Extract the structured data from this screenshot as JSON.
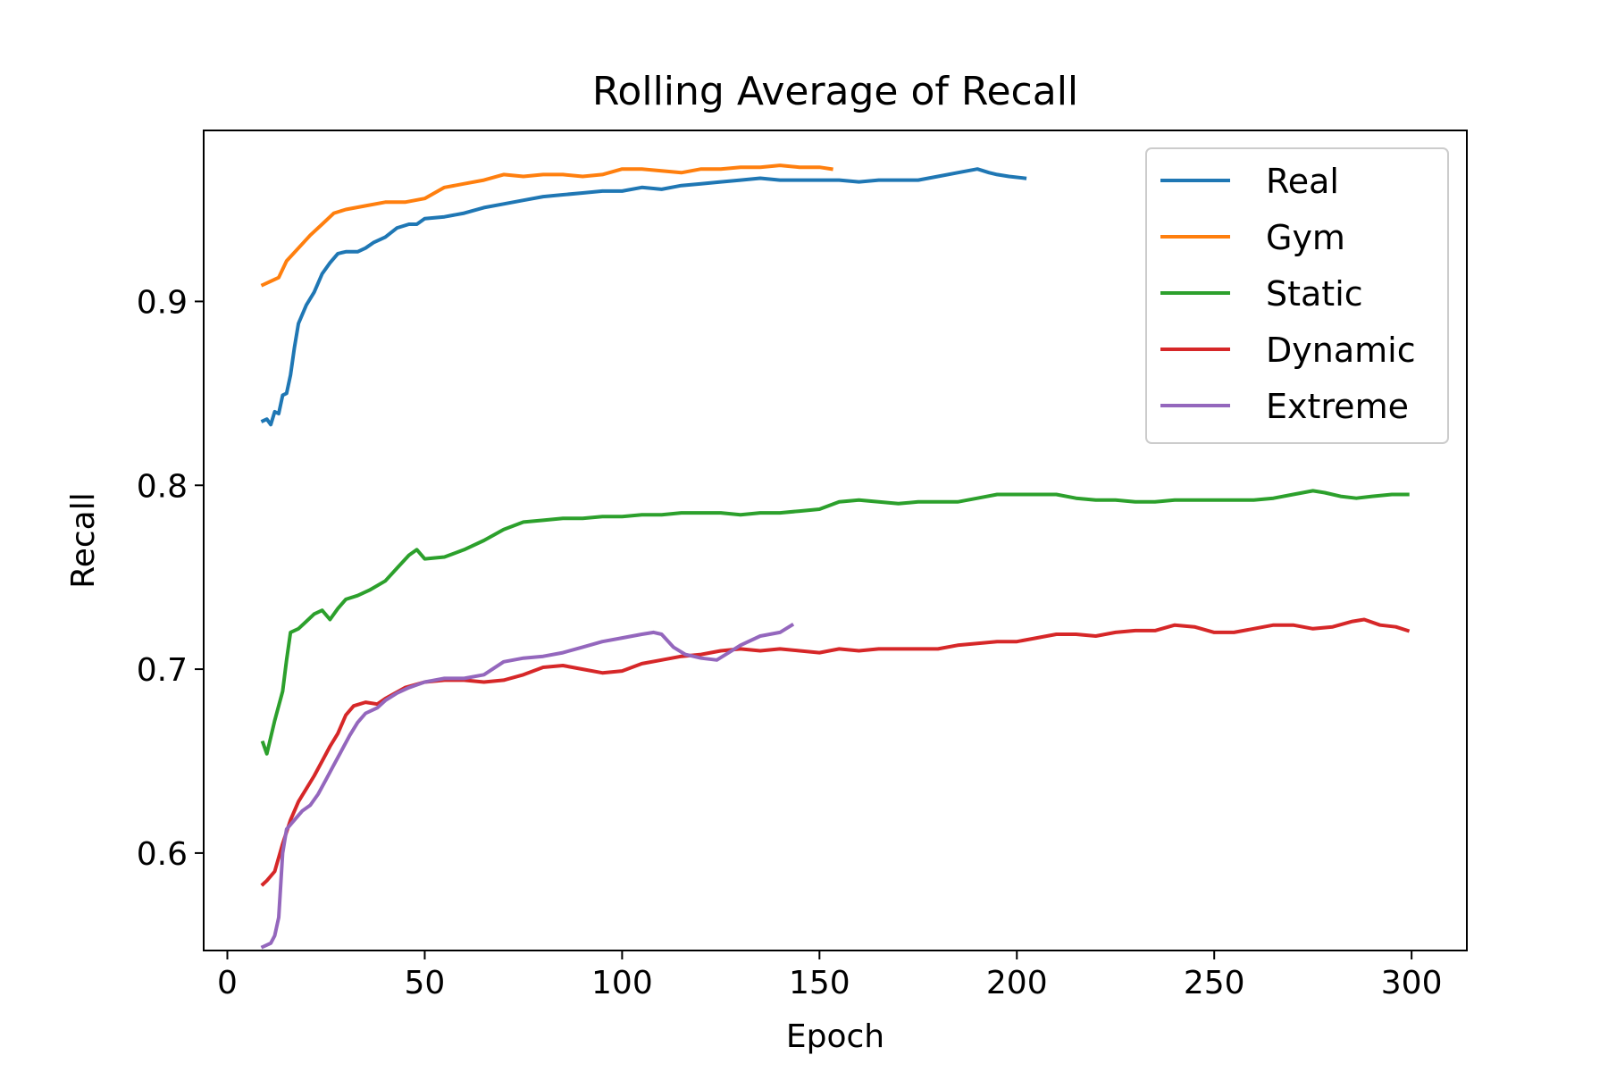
{
  "chart_data": {
    "type": "line",
    "title": "Rolling Average of Recall",
    "xlabel": "Epoch",
    "ylabel": "Recall",
    "xlim": [
      -6,
      314
    ],
    "ylim": [
      0.547,
      0.993
    ],
    "xticks": [
      0,
      50,
      100,
      150,
      200,
      250,
      300
    ],
    "xtick_labels": [
      "0",
      "50",
      "100",
      "150",
      "200",
      "250",
      "300"
    ],
    "yticks": [
      0.6,
      0.7,
      0.8,
      0.9
    ],
    "ytick_labels": [
      "0.6",
      "0.7",
      "0.8",
      "0.9"
    ],
    "grid": false,
    "legend_position": "top-right",
    "series": [
      {
        "name": "Real",
        "color": "#1f77b4",
        "points": [
          [
            9,
            0.835
          ],
          [
            10,
            0.836
          ],
          [
            11,
            0.833
          ],
          [
            12,
            0.84
          ],
          [
            13,
            0.839
          ],
          [
            14,
            0.849
          ],
          [
            15,
            0.85
          ],
          [
            16,
            0.86
          ],
          [
            17,
            0.875
          ],
          [
            18,
            0.888
          ],
          [
            20,
            0.898
          ],
          [
            22,
            0.905
          ],
          [
            24,
            0.915
          ],
          [
            26,
            0.921
          ],
          [
            28,
            0.926
          ],
          [
            30,
            0.927
          ],
          [
            33,
            0.927
          ],
          [
            35,
            0.929
          ],
          [
            37,
            0.932
          ],
          [
            40,
            0.935
          ],
          [
            43,
            0.94
          ],
          [
            46,
            0.942
          ],
          [
            48,
            0.942
          ],
          [
            50,
            0.945
          ],
          [
            55,
            0.946
          ],
          [
            60,
            0.948
          ],
          [
            65,
            0.951
          ],
          [
            70,
            0.953
          ],
          [
            75,
            0.955
          ],
          [
            80,
            0.957
          ],
          [
            85,
            0.958
          ],
          [
            90,
            0.959
          ],
          [
            95,
            0.96
          ],
          [
            100,
            0.96
          ],
          [
            105,
            0.962
          ],
          [
            110,
            0.961
          ],
          [
            115,
            0.963
          ],
          [
            120,
            0.964
          ],
          [
            125,
            0.965
          ],
          [
            130,
            0.966
          ],
          [
            135,
            0.967
          ],
          [
            140,
            0.966
          ],
          [
            145,
            0.966
          ],
          [
            150,
            0.966
          ],
          [
            155,
            0.966
          ],
          [
            160,
            0.965
          ],
          [
            165,
            0.966
          ],
          [
            170,
            0.966
          ],
          [
            175,
            0.966
          ],
          [
            180,
            0.968
          ],
          [
            185,
            0.97
          ],
          [
            190,
            0.972
          ],
          [
            193,
            0.97
          ],
          [
            195,
            0.969
          ],
          [
            198,
            0.968
          ],
          [
            202,
            0.967
          ]
        ]
      },
      {
        "name": "Gym",
        "color": "#ff7f0e",
        "points": [
          [
            9,
            0.909
          ],
          [
            11,
            0.911
          ],
          [
            13,
            0.913
          ],
          [
            15,
            0.922
          ],
          [
            18,
            0.929
          ],
          [
            21,
            0.936
          ],
          [
            24,
            0.942
          ],
          [
            27,
            0.948
          ],
          [
            30,
            0.95
          ],
          [
            35,
            0.952
          ],
          [
            40,
            0.954
          ],
          [
            45,
            0.954
          ],
          [
            50,
            0.956
          ],
          [
            55,
            0.962
          ],
          [
            60,
            0.964
          ],
          [
            65,
            0.966
          ],
          [
            70,
            0.969
          ],
          [
            75,
            0.968
          ],
          [
            80,
            0.969
          ],
          [
            85,
            0.969
          ],
          [
            90,
            0.968
          ],
          [
            95,
            0.969
          ],
          [
            100,
            0.972
          ],
          [
            105,
            0.972
          ],
          [
            110,
            0.971
          ],
          [
            115,
            0.97
          ],
          [
            120,
            0.972
          ],
          [
            125,
            0.972
          ],
          [
            130,
            0.973
          ],
          [
            135,
            0.973
          ],
          [
            140,
            0.974
          ],
          [
            145,
            0.973
          ],
          [
            150,
            0.973
          ],
          [
            153,
            0.972
          ]
        ]
      },
      {
        "name": "Static",
        "color": "#2ca02c",
        "points": [
          [
            9,
            0.66
          ],
          [
            10,
            0.654
          ],
          [
            12,
            0.672
          ],
          [
            14,
            0.688
          ],
          [
            15,
            0.705
          ],
          [
            16,
            0.72
          ],
          [
            18,
            0.722
          ],
          [
            20,
            0.726
          ],
          [
            22,
            0.73
          ],
          [
            24,
            0.732
          ],
          [
            26,
            0.727
          ],
          [
            28,
            0.733
          ],
          [
            30,
            0.738
          ],
          [
            33,
            0.74
          ],
          [
            36,
            0.743
          ],
          [
            40,
            0.748
          ],
          [
            43,
            0.755
          ],
          [
            46,
            0.762
          ],
          [
            48,
            0.765
          ],
          [
            50,
            0.76
          ],
          [
            55,
            0.761
          ],
          [
            60,
            0.765
          ],
          [
            65,
            0.77
          ],
          [
            70,
            0.776
          ],
          [
            75,
            0.78
          ],
          [
            80,
            0.781
          ],
          [
            85,
            0.782
          ],
          [
            90,
            0.782
          ],
          [
            95,
            0.783
          ],
          [
            100,
            0.783
          ],
          [
            105,
            0.784
          ],
          [
            110,
            0.784
          ],
          [
            115,
            0.785
          ],
          [
            120,
            0.785
          ],
          [
            125,
            0.785
          ],
          [
            130,
            0.784
          ],
          [
            135,
            0.785
          ],
          [
            140,
            0.785
          ],
          [
            145,
            0.786
          ],
          [
            150,
            0.787
          ],
          [
            155,
            0.791
          ],
          [
            160,
            0.792
          ],
          [
            165,
            0.791
          ],
          [
            170,
            0.79
          ],
          [
            175,
            0.791
          ],
          [
            180,
            0.791
          ],
          [
            185,
            0.791
          ],
          [
            190,
            0.793
          ],
          [
            195,
            0.795
          ],
          [
            200,
            0.795
          ],
          [
            205,
            0.795
          ],
          [
            210,
            0.795
          ],
          [
            215,
            0.793
          ],
          [
            220,
            0.792
          ],
          [
            225,
            0.792
          ],
          [
            230,
            0.791
          ],
          [
            235,
            0.791
          ],
          [
            240,
            0.792
          ],
          [
            245,
            0.792
          ],
          [
            250,
            0.792
          ],
          [
            255,
            0.792
          ],
          [
            260,
            0.792
          ],
          [
            265,
            0.793
          ],
          [
            270,
            0.795
          ],
          [
            275,
            0.797
          ],
          [
            278,
            0.796
          ],
          [
            282,
            0.794
          ],
          [
            286,
            0.793
          ],
          [
            290,
            0.794
          ],
          [
            295,
            0.795
          ],
          [
            299,
            0.795
          ]
        ]
      },
      {
        "name": "Dynamic",
        "color": "#d62728",
        "points": [
          [
            9,
            0.583
          ],
          [
            10,
            0.585
          ],
          [
            12,
            0.59
          ],
          [
            14,
            0.605
          ],
          [
            16,
            0.618
          ],
          [
            18,
            0.628
          ],
          [
            20,
            0.635
          ],
          [
            22,
            0.642
          ],
          [
            24,
            0.65
          ],
          [
            26,
            0.658
          ],
          [
            28,
            0.665
          ],
          [
            30,
            0.675
          ],
          [
            32,
            0.68
          ],
          [
            35,
            0.682
          ],
          [
            38,
            0.681
          ],
          [
            40,
            0.684
          ],
          [
            45,
            0.69
          ],
          [
            50,
            0.693
          ],
          [
            55,
            0.694
          ],
          [
            60,
            0.694
          ],
          [
            65,
            0.693
          ],
          [
            70,
            0.694
          ],
          [
            75,
            0.697
          ],
          [
            80,
            0.701
          ],
          [
            85,
            0.702
          ],
          [
            90,
            0.7
          ],
          [
            95,
            0.698
          ],
          [
            100,
            0.699
          ],
          [
            105,
            0.703
          ],
          [
            110,
            0.705
          ],
          [
            115,
            0.707
          ],
          [
            120,
            0.708
          ],
          [
            125,
            0.71
          ],
          [
            130,
            0.711
          ],
          [
            135,
            0.71
          ],
          [
            140,
            0.711
          ],
          [
            145,
            0.71
          ],
          [
            150,
            0.709
          ],
          [
            155,
            0.711
          ],
          [
            160,
            0.71
          ],
          [
            165,
            0.711
          ],
          [
            170,
            0.711
          ],
          [
            175,
            0.711
          ],
          [
            180,
            0.711
          ],
          [
            185,
            0.713
          ],
          [
            190,
            0.714
          ],
          [
            195,
            0.715
          ],
          [
            200,
            0.715
          ],
          [
            205,
            0.717
          ],
          [
            210,
            0.719
          ],
          [
            215,
            0.719
          ],
          [
            220,
            0.718
          ],
          [
            225,
            0.72
          ],
          [
            230,
            0.721
          ],
          [
            235,
            0.721
          ],
          [
            240,
            0.724
          ],
          [
            245,
            0.723
          ],
          [
            250,
            0.72
          ],
          [
            255,
            0.72
          ],
          [
            260,
            0.722
          ],
          [
            265,
            0.724
          ],
          [
            270,
            0.724
          ],
          [
            275,
            0.722
          ],
          [
            280,
            0.723
          ],
          [
            285,
            0.726
          ],
          [
            288,
            0.727
          ],
          [
            292,
            0.724
          ],
          [
            296,
            0.723
          ],
          [
            299,
            0.721
          ]
        ]
      },
      {
        "name": "Extreme",
        "color": "#9467bd",
        "points": [
          [
            9,
            0.549
          ],
          [
            11,
            0.551
          ],
          [
            12,
            0.555
          ],
          [
            13,
            0.565
          ],
          [
            14,
            0.6
          ],
          [
            15,
            0.613
          ],
          [
            17,
            0.618
          ],
          [
            19,
            0.623
          ],
          [
            21,
            0.626
          ],
          [
            23,
            0.632
          ],
          [
            25,
            0.64
          ],
          [
            27,
            0.648
          ],
          [
            29,
            0.656
          ],
          [
            31,
            0.664
          ],
          [
            33,
            0.671
          ],
          [
            35,
            0.676
          ],
          [
            38,
            0.679
          ],
          [
            40,
            0.683
          ],
          [
            43,
            0.687
          ],
          [
            46,
            0.69
          ],
          [
            50,
            0.693
          ],
          [
            55,
            0.695
          ],
          [
            60,
            0.695
          ],
          [
            65,
            0.697
          ],
          [
            70,
            0.704
          ],
          [
            75,
            0.706
          ],
          [
            80,
            0.707
          ],
          [
            85,
            0.709
          ],
          [
            90,
            0.712
          ],
          [
            95,
            0.715
          ],
          [
            100,
            0.717
          ],
          [
            105,
            0.719
          ],
          [
            108,
            0.72
          ],
          [
            110,
            0.719
          ],
          [
            113,
            0.712
          ],
          [
            116,
            0.708
          ],
          [
            120,
            0.706
          ],
          [
            124,
            0.705
          ],
          [
            127,
            0.709
          ],
          [
            130,
            0.713
          ],
          [
            135,
            0.718
          ],
          [
            140,
            0.72
          ],
          [
            143,
            0.724
          ]
        ]
      }
    ]
  }
}
